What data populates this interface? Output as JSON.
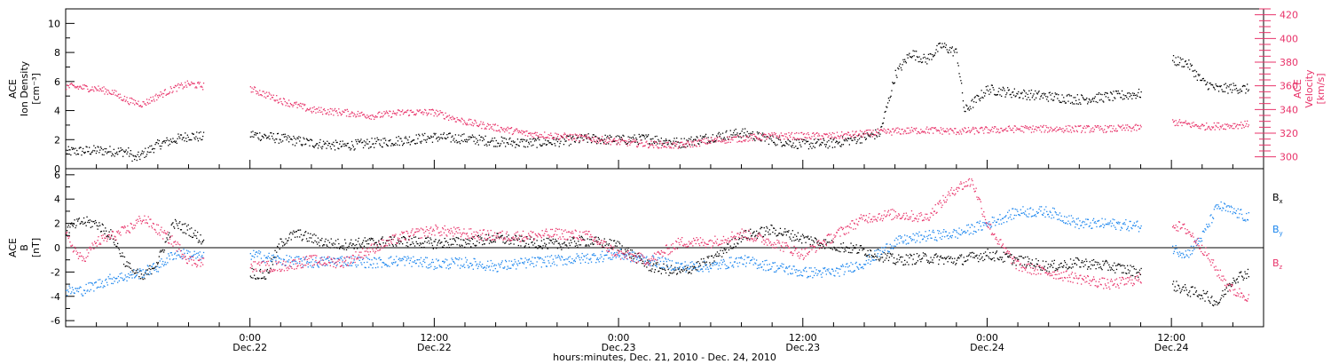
{
  "colors": {
    "black": "#000000",
    "pink": "#e8336a",
    "blue": "#1c86ee"
  },
  "xaxis": {
    "title": "hours:minutes, Dec. 21, 2010 - Dec. 24, 2010",
    "range": [
      12,
      90
    ],
    "ticks": [
      {
        "hour": 24,
        "time": "0:00",
        "date": "Dec.22"
      },
      {
        "hour": 36,
        "time": "12:00",
        "date": "Dec.22"
      },
      {
        "hour": 48,
        "time": "0:00",
        "date": "Dec.23"
      },
      {
        "hour": 60,
        "time": "12:00",
        "date": "Dec.23"
      },
      {
        "hour": 72,
        "time": "0:00",
        "date": "Dec.24"
      },
      {
        "hour": 84,
        "time": "12:00",
        "date": "Dec.24"
      }
    ]
  },
  "chart_data": [
    {
      "type": "scatter",
      "panel": "plasma",
      "ylabel_left": [
        "ACE",
        "Ion Density",
        "[cm⁻³]"
      ],
      "ylabel_right": [
        "ACE",
        "Velocity",
        "[km/s]"
      ],
      "ylim_left": [
        0,
        11
      ],
      "ylim_right": [
        290,
        425
      ],
      "yticks_left": [
        0,
        2,
        4,
        6,
        8,
        10
      ],
      "yticks_right": [
        300,
        320,
        340,
        360,
        380,
        400,
        420
      ],
      "series": [
        {
          "axis": "left",
          "color": "black",
          "x": [
            12,
            14,
            16,
            16.5,
            18,
            20,
            21,
            22,
            24,
            26,
            28,
            30,
            32,
            34,
            36,
            38,
            40,
            42,
            44,
            46,
            48,
            50,
            52,
            54,
            56,
            58,
            60,
            62,
            63,
            64,
            65,
            66,
            67,
            68,
            69,
            70,
            70.5,
            72,
            74,
            76,
            78,
            80,
            82,
            83.5,
            84,
            85,
            86,
            87,
            88,
            89
          ],
          "y": [
            1.2,
            1.3,
            1.2,
            0.7,
            1.7,
            2.3,
            2.2,
            null,
            2.4,
            2.1,
            1.8,
            1.6,
            1.8,
            2.0,
            2.2,
            2.1,
            1.9,
            1.8,
            1.9,
            2.1,
            2.0,
            2.1,
            1.8,
            2.2,
            2.5,
            2.0,
            1.7,
            1.8,
            2.0,
            2.2,
            2.5,
            6.5,
            8.0,
            7.5,
            8.5,
            8.0,
            4.0,
            5.5,
            5.2,
            5.0,
            4.8,
            5.0,
            5.2,
            null,
            7.5,
            7.3,
            6.0,
            5.5,
            5.6,
            5.5
          ]
        },
        {
          "axis": "right",
          "color": "pink",
          "x": [
            12,
            14,
            15,
            16,
            17,
            18,
            19,
            20,
            21,
            22,
            24,
            26,
            28,
            30,
            32,
            34,
            36,
            38,
            40,
            42,
            44,
            46,
            48,
            50,
            52,
            54,
            56,
            58,
            60,
            62,
            64,
            66,
            68,
            70,
            72,
            74,
            76,
            78,
            80,
            82,
            83.5,
            84,
            86,
            88,
            89
          ],
          "y": [
            360,
            358,
            355,
            348,
            345,
            352,
            358,
            362,
            360,
            null,
            358,
            348,
            340,
            338,
            335,
            338,
            338,
            330,
            325,
            320,
            318,
            316,
            313,
            311,
            310,
            314,
            316,
            318,
            318,
            318,
            320,
            322,
            323,
            322,
            323,
            324,
            324,
            324,
            324,
            325,
            null,
            330,
            326,
            327,
            328
          ]
        }
      ]
    },
    {
      "type": "scatter",
      "panel": "magnetic-field",
      "ylabel_left": [
        "ACE",
        "B",
        "[nT]"
      ],
      "ylim": [
        -6.5,
        6.5
      ],
      "yticks": [
        -6,
        -4,
        -2,
        0,
        2,
        4,
        6
      ],
      "legend": [
        {
          "label": "B",
          "sub": "x",
          "color": "black"
        },
        {
          "label": "B",
          "sub": "y",
          "color": "blue"
        },
        {
          "label": "B",
          "sub": "z",
          "color": "pink"
        }
      ],
      "series": [
        {
          "name": "Bx",
          "color": "black",
          "x": [
            12,
            13,
            14,
            15,
            16,
            17,
            18,
            19,
            20,
            21,
            22,
            24,
            25,
            26,
            27,
            28,
            29,
            30,
            32,
            34,
            36,
            38,
            40,
            42,
            44,
            46,
            48,
            50,
            52,
            54,
            56,
            58,
            60,
            62,
            64,
            66,
            68,
            70,
            72,
            74,
            76,
            78,
            80,
            82,
            83.5,
            84,
            85,
            86,
            87,
            88,
            89
          ],
          "y": [
            1.5,
            2.2,
            2.0,
            1.0,
            -1.5,
            -2.5,
            -1.0,
            2.0,
            1.5,
            0.5,
            null,
            -2.0,
            -2.3,
            0.5,
            1.2,
            0.8,
            0.4,
            0.3,
            0.5,
            0.6,
            0.4,
            0.5,
            0.8,
            0.5,
            0.3,
            0.6,
            0.2,
            -1.5,
            -2.0,
            -1.0,
            1.0,
            1.5,
            0.8,
            0.2,
            -0.2,
            -1.0,
            -0.8,
            -1.0,
            -0.5,
            -1.0,
            -1.5,
            -1.2,
            -1.5,
            -2.0,
            null,
            -3.0,
            -3.5,
            -3.8,
            -4.5,
            -2.5,
            -2.0
          ]
        },
        {
          "name": "By",
          "color": "blue",
          "x": [
            12,
            13,
            14,
            15,
            16,
            17,
            18,
            19,
            20,
            21,
            22,
            24,
            26,
            28,
            30,
            32,
            34,
            36,
            38,
            40,
            42,
            44,
            46,
            48,
            50,
            52,
            54,
            56,
            58,
            60,
            62,
            64,
            66,
            68,
            70,
            72,
            74,
            76,
            78,
            80,
            82,
            83.5,
            84,
            85,
            86,
            87,
            88,
            89
          ],
          "y": [
            -3.5,
            -3.5,
            -3.0,
            -2.5,
            -2.3,
            -2.0,
            -1.5,
            -0.5,
            -0.5,
            -0.8,
            null,
            -0.5,
            -1.0,
            -1.2,
            -1.0,
            -1.2,
            -1.0,
            -1.3,
            -1.2,
            -1.5,
            -1.2,
            -1.0,
            -0.8,
            -0.5,
            -1.0,
            -1.5,
            -1.5,
            -1.0,
            -1.5,
            -2.0,
            -2.0,
            -1.2,
            0.5,
            1.0,
            1.2,
            2.0,
            3.0,
            3.0,
            2.0,
            2.0,
            1.8,
            null,
            0,
            -0.5,
            1.0,
            3.5,
            3.0,
            2.5
          ]
        },
        {
          "name": "Bz",
          "color": "pink",
          "x": [
            12,
            13,
            14,
            15,
            16,
            17,
            18,
            19,
            20,
            21,
            22,
            24,
            26,
            28,
            30,
            32,
            34,
            36,
            38,
            40,
            42,
            44,
            46,
            48,
            50,
            52,
            54,
            56,
            58,
            60,
            62,
            64,
            66,
            68,
            70,
            71,
            72,
            73,
            74,
            76,
            78,
            80,
            82,
            83.5,
            84,
            85,
            86,
            87,
            88,
            89
          ],
          "y": [
            1.0,
            -1.0,
            0.5,
            1.0,
            1.5,
            2.5,
            1.5,
            0.5,
            -1.0,
            -1.2,
            null,
            -1.5,
            -1.5,
            -1.0,
            -1.2,
            0.0,
            1.0,
            1.5,
            1.2,
            1.0,
            1.0,
            1.2,
            1.0,
            -0.5,
            -1.0,
            0.5,
            0.5,
            1.2,
            0.5,
            -0.5,
            1.0,
            2.5,
            2.8,
            2.5,
            5.0,
            5.5,
            2.0,
            0.0,
            -1.5,
            -2.0,
            -2.5,
            -3.0,
            -2.5,
            null,
            2.0,
            1.5,
            0.0,
            -2.0,
            -3.5,
            -4.0
          ]
        }
      ]
    }
  ]
}
